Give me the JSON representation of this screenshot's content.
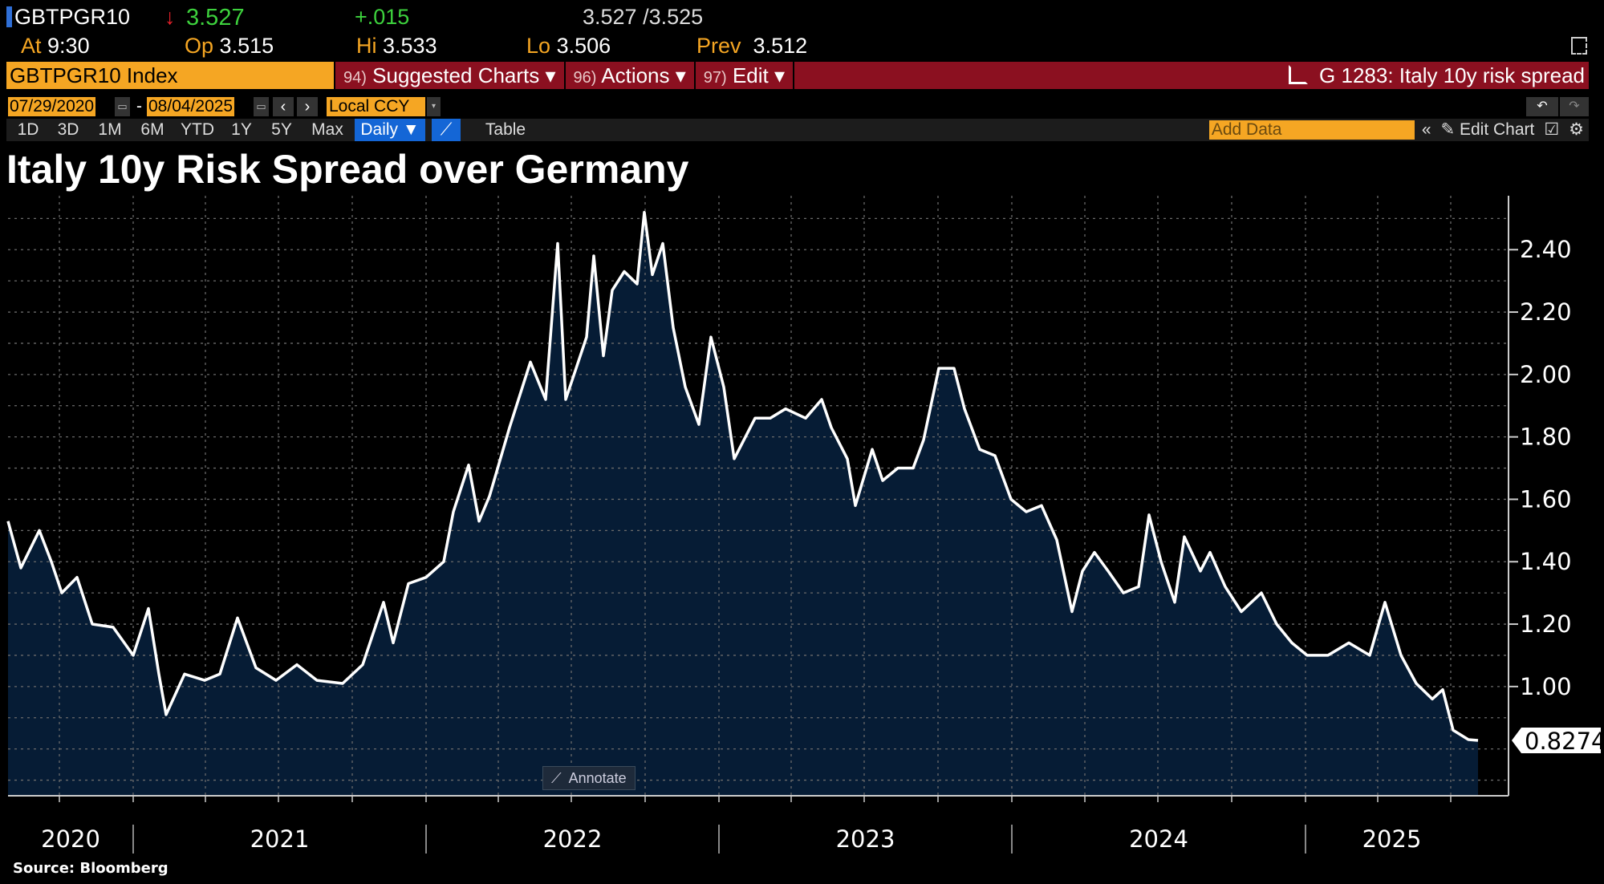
{
  "quote": {
    "ticker": "GBTPGR10",
    "direction_arrow": "↓",
    "last": "3.527",
    "change": "+.015",
    "bid_ask": "3.527 /3.525",
    "at_label": "At",
    "at_value": "9:30",
    "open_label": "Op",
    "open_value": "3.515",
    "high_label": "Hi",
    "high_value": "3.533",
    "low_label": "Lo",
    "low_value": "3.506",
    "prev_label": "Prev",
    "prev_value": "3.512"
  },
  "command_bar": {
    "security": "GBTPGR10 Index",
    "menus": [
      {
        "num": "94)",
        "label": "Suggested Charts ▾"
      },
      {
        "num": "96)",
        "label": "Actions ▾"
      },
      {
        "num": "97)",
        "label": "Edit ▾"
      }
    ],
    "chart_link": "G 1283: Italy 10y risk spread"
  },
  "range": {
    "start": "07/29/2020",
    "separator": "-",
    "end": "08/04/2025",
    "currency": "Local CCY"
  },
  "toolbar": {
    "periods": [
      "1D",
      "3D",
      "1M",
      "6M",
      "YTD",
      "1Y",
      "5Y",
      "Max"
    ],
    "frequency": "Daily ▼",
    "table": "Table",
    "add_data_placeholder": "Add Data",
    "edit_chart": "Edit Chart"
  },
  "colors": {
    "accent": "#f5a623",
    "menu_bar": "#8b1020",
    "fill": "#061e3a",
    "line": "#ffffff",
    "up": "#3dd13d",
    "down": "#e8202a"
  },
  "annotate_label": "Annotate",
  "source": "Source: Bloomberg",
  "chart_data": {
    "type": "area",
    "title": "Italy 10y Risk Spread over Germany",
    "xlabel": "",
    "ylabel": "",
    "x_range": [
      "2020-07-29",
      "2025-08-04"
    ],
    "x_tick_labels": [
      "2020",
      "2021",
      "2022",
      "2023",
      "2024",
      "2025"
    ],
    "ylim": [
      0.65,
      2.56
    ],
    "y_ticks": [
      1.0,
      1.2,
      1.4,
      1.6,
      1.8,
      2.0,
      2.2,
      2.4
    ],
    "y_tick_labels": [
      "1.00",
      "1.20",
      "1.40",
      "1.60",
      "1.80",
      "2.00",
      "2.20",
      "2.40"
    ],
    "grid": true,
    "last_value_label": "0.8274",
    "series": [
      {
        "x": [
          "2020-07-29",
          "2020-08-14",
          "2020-09-06",
          "2020-09-21",
          "2020-10-04",
          "2020-10-23",
          "2020-11-11",
          "2020-12-07",
          "2021-01-01",
          "2021-01-20",
          "2021-02-02",
          "2021-02-11",
          "2021-03-06",
          "2021-03-31",
          "2021-04-19",
          "2021-05-11",
          "2021-06-03",
          "2021-06-28",
          "2021-07-24",
          "2021-08-18",
          "2021-09-19",
          "2021-10-14",
          "2021-11-09",
          "2021-11-21",
          "2021-12-10",
          "2022-01-01",
          "2022-01-23",
          "2022-02-04",
          "2022-02-23",
          "2022-03-08",
          "2022-03-21",
          "2022-04-15",
          "2022-05-11",
          "2022-05-30",
          "2022-06-14",
          "2022-06-24",
          "2022-07-20",
          "2022-07-29",
          "2022-08-10",
          "2022-08-21",
          "2022-09-05",
          "2022-09-21",
          "2022-09-30",
          "2022-10-10",
          "2022-10-23",
          "2022-11-05",
          "2022-11-20",
          "2022-12-07",
          "2022-12-22",
          "2023-01-07",
          "2023-01-20",
          "2023-02-15",
          "2023-03-06",
          "2023-03-25",
          "2023-04-19",
          "2023-05-09",
          "2023-05-21",
          "2023-06-10",
          "2023-06-20",
          "2023-07-11",
          "2023-07-24",
          "2023-08-12",
          "2023-08-31",
          "2023-09-13",
          "2023-10-02",
          "2023-10-21",
          "2023-11-03",
          "2023-11-22",
          "2023-12-11",
          "2023-12-31",
          "2024-01-19",
          "2024-02-07",
          "2024-02-26",
          "2024-03-16",
          "2024-03-29",
          "2024-04-13",
          "2024-04-30",
          "2024-05-19",
          "2024-06-07",
          "2024-06-20",
          "2024-07-05",
          "2024-07-22",
          "2024-08-03",
          "2024-08-23",
          "2024-09-04",
          "2024-09-23",
          "2024-10-13",
          "2024-11-07",
          "2024-11-26",
          "2024-12-15",
          "2025-01-03",
          "2025-01-29",
          "2025-02-24",
          "2025-03-22",
          "2025-04-10",
          "2025-04-30",
          "2025-05-19",
          "2025-06-08",
          "2025-06-21",
          "2025-07-04",
          "2025-07-23",
          "2025-08-04"
        ],
        "y": [
          1.53,
          1.38,
          1.5,
          1.4,
          1.3,
          1.35,
          1.2,
          1.19,
          1.1,
          1.25,
          1.04,
          0.91,
          1.04,
          1.02,
          1.04,
          1.22,
          1.06,
          1.02,
          1.07,
          1.02,
          1.01,
          1.07,
          1.27,
          1.14,
          1.33,
          1.35,
          1.4,
          1.56,
          1.71,
          1.53,
          1.61,
          1.83,
          2.04,
          1.92,
          2.42,
          1.92,
          2.12,
          2.38,
          2.06,
          2.27,
          2.33,
          2.29,
          2.52,
          2.32,
          2.42,
          2.15,
          1.96,
          1.84,
          2.12,
          1.96,
          1.73,
          1.86,
          1.86,
          1.89,
          1.86,
          1.92,
          1.83,
          1.73,
          1.58,
          1.76,
          1.66,
          1.7,
          1.7,
          1.79,
          2.02,
          2.02,
          1.89,
          1.76,
          1.74,
          1.6,
          1.56,
          1.58,
          1.47,
          1.24,
          1.37,
          1.43,
          1.37,
          1.3,
          1.32,
          1.55,
          1.4,
          1.27,
          1.48,
          1.37,
          1.43,
          1.32,
          1.24,
          1.3,
          1.2,
          1.14,
          1.1,
          1.1,
          1.14,
          1.1,
          1.27,
          1.1,
          1.01,
          0.96,
          0.99,
          0.86,
          0.83,
          0.8274
        ]
      }
    ]
  }
}
